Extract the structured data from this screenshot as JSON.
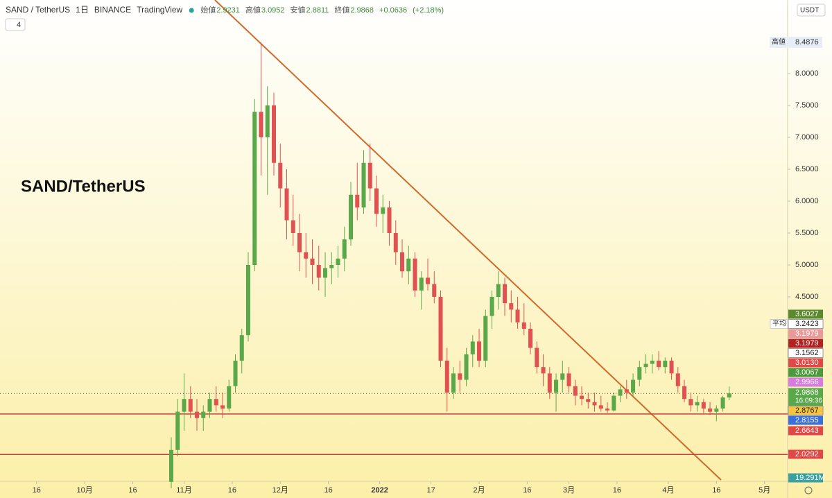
{
  "chart_data": {
    "type": "candlestick",
    "header": {
      "symbol": "SAND / TetherUS",
      "interval": "1日",
      "exchange": "BINANCE",
      "source": "TradingView",
      "ohlc": [
        {
          "name": "始値",
          "value": "2.9231"
        },
        {
          "name": "高値",
          "value": "3.0952"
        },
        {
          "name": "安値",
          "value": "2.8811"
        },
        {
          "name": "終値",
          "value": "2.9868"
        }
      ],
      "change": "+0.0636",
      "change_pct": "(+2.18%)",
      "indicators": "4",
      "currency": "USDT"
    },
    "title": "SAND/TetherUS",
    "up_color": "#5aa84a",
    "down_color": "#e05252",
    "ohlc": [
      [
        1.6,
        2.3,
        1.5,
        2.1
      ],
      [
        2.1,
        2.9,
        2.0,
        2.7
      ],
      [
        2.7,
        3.3,
        2.4,
        2.9
      ],
      [
        2.9,
        3.1,
        2.6,
        2.7
      ],
      [
        2.7,
        2.9,
        2.4,
        2.6
      ],
      [
        2.6,
        2.8,
        2.4,
        2.7
      ],
      [
        2.7,
        3.0,
        2.6,
        2.9
      ],
      [
        2.9,
        3.1,
        2.7,
        2.8
      ],
      [
        2.8,
        3.0,
        2.6,
        2.75
      ],
      [
        2.75,
        3.2,
        2.7,
        3.1
      ],
      [
        3.1,
        3.6,
        3.0,
        3.5
      ],
      [
        3.5,
        4.0,
        3.3,
        3.9
      ],
      [
        3.9,
        5.2,
        3.8,
        5.0
      ],
      [
        5.0,
        7.6,
        4.9,
        7.4
      ],
      [
        7.4,
        8.4876,
        6.4,
        7.0
      ],
      [
        7.0,
        7.8,
        6.1,
        7.5
      ],
      [
        7.5,
        7.7,
        6.4,
        6.6
      ],
      [
        6.6,
        6.9,
        5.9,
        6.2
      ],
      [
        6.2,
        6.5,
        5.4,
        5.7
      ],
      [
        5.7,
        6.1,
        5.3,
        5.5
      ],
      [
        5.5,
        5.8,
        4.9,
        5.2
      ],
      [
        5.2,
        5.5,
        4.8,
        5.1
      ],
      [
        5.1,
        5.4,
        4.7,
        5.0
      ],
      [
        5.0,
        5.3,
        4.6,
        4.8
      ],
      [
        4.8,
        5.2,
        4.5,
        4.95
      ],
      [
        4.95,
        5.2,
        4.7,
        5.0
      ],
      [
        5.0,
        5.3,
        4.8,
        5.1
      ],
      [
        5.1,
        5.6,
        4.9,
        5.4
      ],
      [
        5.4,
        6.3,
        5.3,
        6.1
      ],
      [
        6.1,
        6.6,
        5.7,
        5.9
      ],
      [
        5.9,
        6.8,
        5.8,
        6.6
      ],
      [
        6.6,
        6.9,
        6.0,
        6.2
      ],
      [
        6.2,
        6.4,
        5.6,
        5.8
      ],
      [
        5.8,
        6.1,
        5.5,
        5.9
      ],
      [
        5.9,
        6.0,
        5.3,
        5.5
      ],
      [
        5.5,
        5.7,
        5.0,
        5.2
      ],
      [
        5.2,
        5.4,
        4.8,
        4.9
      ],
      [
        4.9,
        5.3,
        4.7,
        5.1
      ],
      [
        5.1,
        5.2,
        4.5,
        4.6
      ],
      [
        4.6,
        4.9,
        4.3,
        4.8
      ],
      [
        4.8,
        5.1,
        4.6,
        4.7
      ],
      [
        4.7,
        4.9,
        4.4,
        4.5
      ],
      [
        4.5,
        4.6,
        3.4,
        3.5
      ],
      [
        3.5,
        3.7,
        2.7,
        3.0
      ],
      [
        3.0,
        3.4,
        2.9,
        3.3
      ],
      [
        3.3,
        3.5,
        3.0,
        3.2
      ],
      [
        3.2,
        3.7,
        3.1,
        3.6
      ],
      [
        3.6,
        3.9,
        3.4,
        3.8
      ],
      [
        3.8,
        4.0,
        3.4,
        3.5
      ],
      [
        3.5,
        4.3,
        3.4,
        4.2
      ],
      [
        4.2,
        4.6,
        4.0,
        4.5
      ],
      [
        4.5,
        4.9,
        4.3,
        4.7
      ],
      [
        4.7,
        4.8,
        4.2,
        4.4
      ],
      [
        4.4,
        4.6,
        4.1,
        4.3
      ],
      [
        4.3,
        4.5,
        4.0,
        4.1
      ],
      [
        4.1,
        4.4,
        3.9,
        4.0
      ],
      [
        4.0,
        4.1,
        3.6,
        3.7
      ],
      [
        3.7,
        3.8,
        3.3,
        3.4
      ],
      [
        3.4,
        3.6,
        3.1,
        3.3
      ],
      [
        3.3,
        3.4,
        2.9,
        3.0
      ],
      [
        3.0,
        3.3,
        2.7,
        3.2
      ],
      [
        3.2,
        3.5,
        3.0,
        3.3
      ],
      [
        3.3,
        3.4,
        3.0,
        3.1
      ],
      [
        3.1,
        3.2,
        2.8,
        2.95
      ],
      [
        2.95,
        3.1,
        2.8,
        2.9
      ],
      [
        2.9,
        3.0,
        2.75,
        2.85
      ],
      [
        2.85,
        3.0,
        2.7,
        2.8
      ],
      [
        2.8,
        2.95,
        2.7,
        2.75
      ],
      [
        2.75,
        2.85,
        2.68,
        2.72
      ],
      [
        2.72,
        3.0,
        2.7,
        2.95
      ],
      [
        2.95,
        3.1,
        2.85,
        3.05
      ],
      [
        3.05,
        3.2,
        2.9,
        3.0
      ],
      [
        3.0,
        3.3,
        2.95,
        3.2
      ],
      [
        3.2,
        3.5,
        3.1,
        3.4
      ],
      [
        3.4,
        3.6,
        3.3,
        3.45
      ],
      [
        3.45,
        3.6,
        3.3,
        3.5
      ],
      [
        3.5,
        3.65,
        3.35,
        3.4
      ],
      [
        3.4,
        3.55,
        3.3,
        3.5
      ],
      [
        3.5,
        3.55,
        3.2,
        3.3
      ],
      [
        3.3,
        3.4,
        3.0,
        3.1
      ],
      [
        3.1,
        3.2,
        2.85,
        2.9
      ],
      [
        2.9,
        3.0,
        2.7,
        2.8
      ],
      [
        2.8,
        2.95,
        2.7,
        2.85
      ],
      [
        2.85,
        2.9,
        2.68,
        2.75
      ],
      [
        2.75,
        2.85,
        2.65,
        2.7
      ],
      [
        2.7,
        2.8,
        2.55,
        2.75
      ],
      [
        2.75,
        2.95,
        2.7,
        2.9231
      ],
      [
        2.9231,
        3.0952,
        2.8811,
        2.9868
      ]
    ],
    "xlim": [
      -26.7,
      96.1
    ],
    "xticks": [
      {
        "value": -21,
        "label": "16"
      },
      {
        "value": -13.5,
        "label": "10月"
      },
      {
        "value": -6,
        "label": "16"
      },
      {
        "value": 2,
        "label": "11月"
      },
      {
        "value": 9.5,
        "label": "16"
      },
      {
        "value": 17,
        "label": "12月"
      },
      {
        "value": 24.5,
        "label": "16"
      },
      {
        "value": 32.5,
        "label": "2022"
      },
      {
        "value": 40.5,
        "label": "17"
      },
      {
        "value": 48,
        "label": "2月"
      },
      {
        "value": 55.5,
        "label": "16"
      },
      {
        "value": 62,
        "label": "3月"
      },
      {
        "value": 69.5,
        "label": "16"
      },
      {
        "value": 77.5,
        "label": "4月"
      },
      {
        "value": 85,
        "label": "16"
      },
      {
        "value": 92.5,
        "label": "5月"
      }
    ],
    "ylim": [
      1.652,
      9.152
    ],
    "yticks": [
      {
        "value": 8,
        "label": "8.0000"
      },
      {
        "value": 7.5,
        "label": "7.5000"
      },
      {
        "value": 7,
        "label": "7.0000"
      },
      {
        "value": 6.5,
        "label": "6.5000"
      },
      {
        "value": 6,
        "label": "6.0000"
      },
      {
        "value": 5.5,
        "label": "5.5000"
      },
      {
        "value": 5,
        "label": "5.0000"
      },
      {
        "value": 4.5,
        "label": "4.5000"
      }
    ],
    "high_tag": {
      "name": "高値",
      "label": "8.4876"
    },
    "price_tags": [
      {
        "label": "3.6027",
        "color": "#5b8a2e"
      },
      {
        "label": "3.2423",
        "color": "#ffffff",
        "prefix": "平均"
      },
      {
        "label": "3.1979",
        "color": "#e89a9a"
      },
      {
        "label": "3.1979",
        "color": "#b22222"
      },
      {
        "label": "3.1562",
        "color": "#ffffff"
      },
      {
        "label": "3.0130",
        "color": "#e04848"
      },
      {
        "label": "3.0067",
        "color": "#4c9a3c"
      },
      {
        "label": "2.9966",
        "color": "#d77be0"
      },
      {
        "label": "2.9868",
        "color": "#5aa84a",
        "countdown": "16:09:36"
      },
      {
        "label": "2.8767",
        "color": "#f5c542"
      },
      {
        "label": "2.8155",
        "color": "#3a6fe0"
      },
      {
        "label": "2.6643",
        "color": "#e04848"
      },
      {
        "label": "2.0292",
        "color": "#e04848"
      },
      {
        "label": "19.291M",
        "color": "#3aa0a0"
      }
    ],
    "hlines": [
      {
        "value": 2.6643,
        "color": "#c83c3c"
      },
      {
        "value": 2.0292,
        "color": "#c83c3c"
      }
    ],
    "last_price": 2.9868
  }
}
